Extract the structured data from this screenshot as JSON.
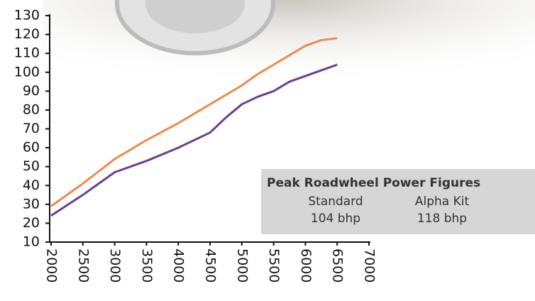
{
  "chart_data": {
    "type": "line",
    "x": [
      2000,
      2500,
      3000,
      3500,
      4000,
      4500,
      4750,
      5000,
      5250,
      5500,
      5750,
      6000,
      6250,
      6500
    ],
    "series": [
      {
        "color": "#ef8a4c",
        "values": [
          29,
          41,
          54,
          64,
          73,
          83,
          88,
          93,
          99,
          104,
          109,
          114,
          117,
          118
        ]
      },
      {
        "color": "#6b3f91",
        "values": [
          24,
          35,
          47,
          53,
          60,
          68,
          76,
          83,
          87,
          90,
          95,
          98,
          101,
          104
        ]
      }
    ],
    "xlim": [
      2000,
      7000
    ],
    "xticks": [
      2000,
      2500,
      3000,
      3500,
      4000,
      4500,
      5000,
      5500,
      6000,
      6500,
      7000
    ],
    "ylim": [
      10,
      130
    ],
    "yticks": [
      10,
      20,
      30,
      40,
      50,
      60,
      70,
      80,
      90,
      100,
      110,
      120,
      130
    ]
  },
  "table": {
    "title": "Peak Roadwheel Power Figures",
    "headers": [
      "Standard",
      "Alpha Kit"
    ],
    "rows": [
      [
        "104 bhp",
        "118 bhp"
      ]
    ]
  }
}
